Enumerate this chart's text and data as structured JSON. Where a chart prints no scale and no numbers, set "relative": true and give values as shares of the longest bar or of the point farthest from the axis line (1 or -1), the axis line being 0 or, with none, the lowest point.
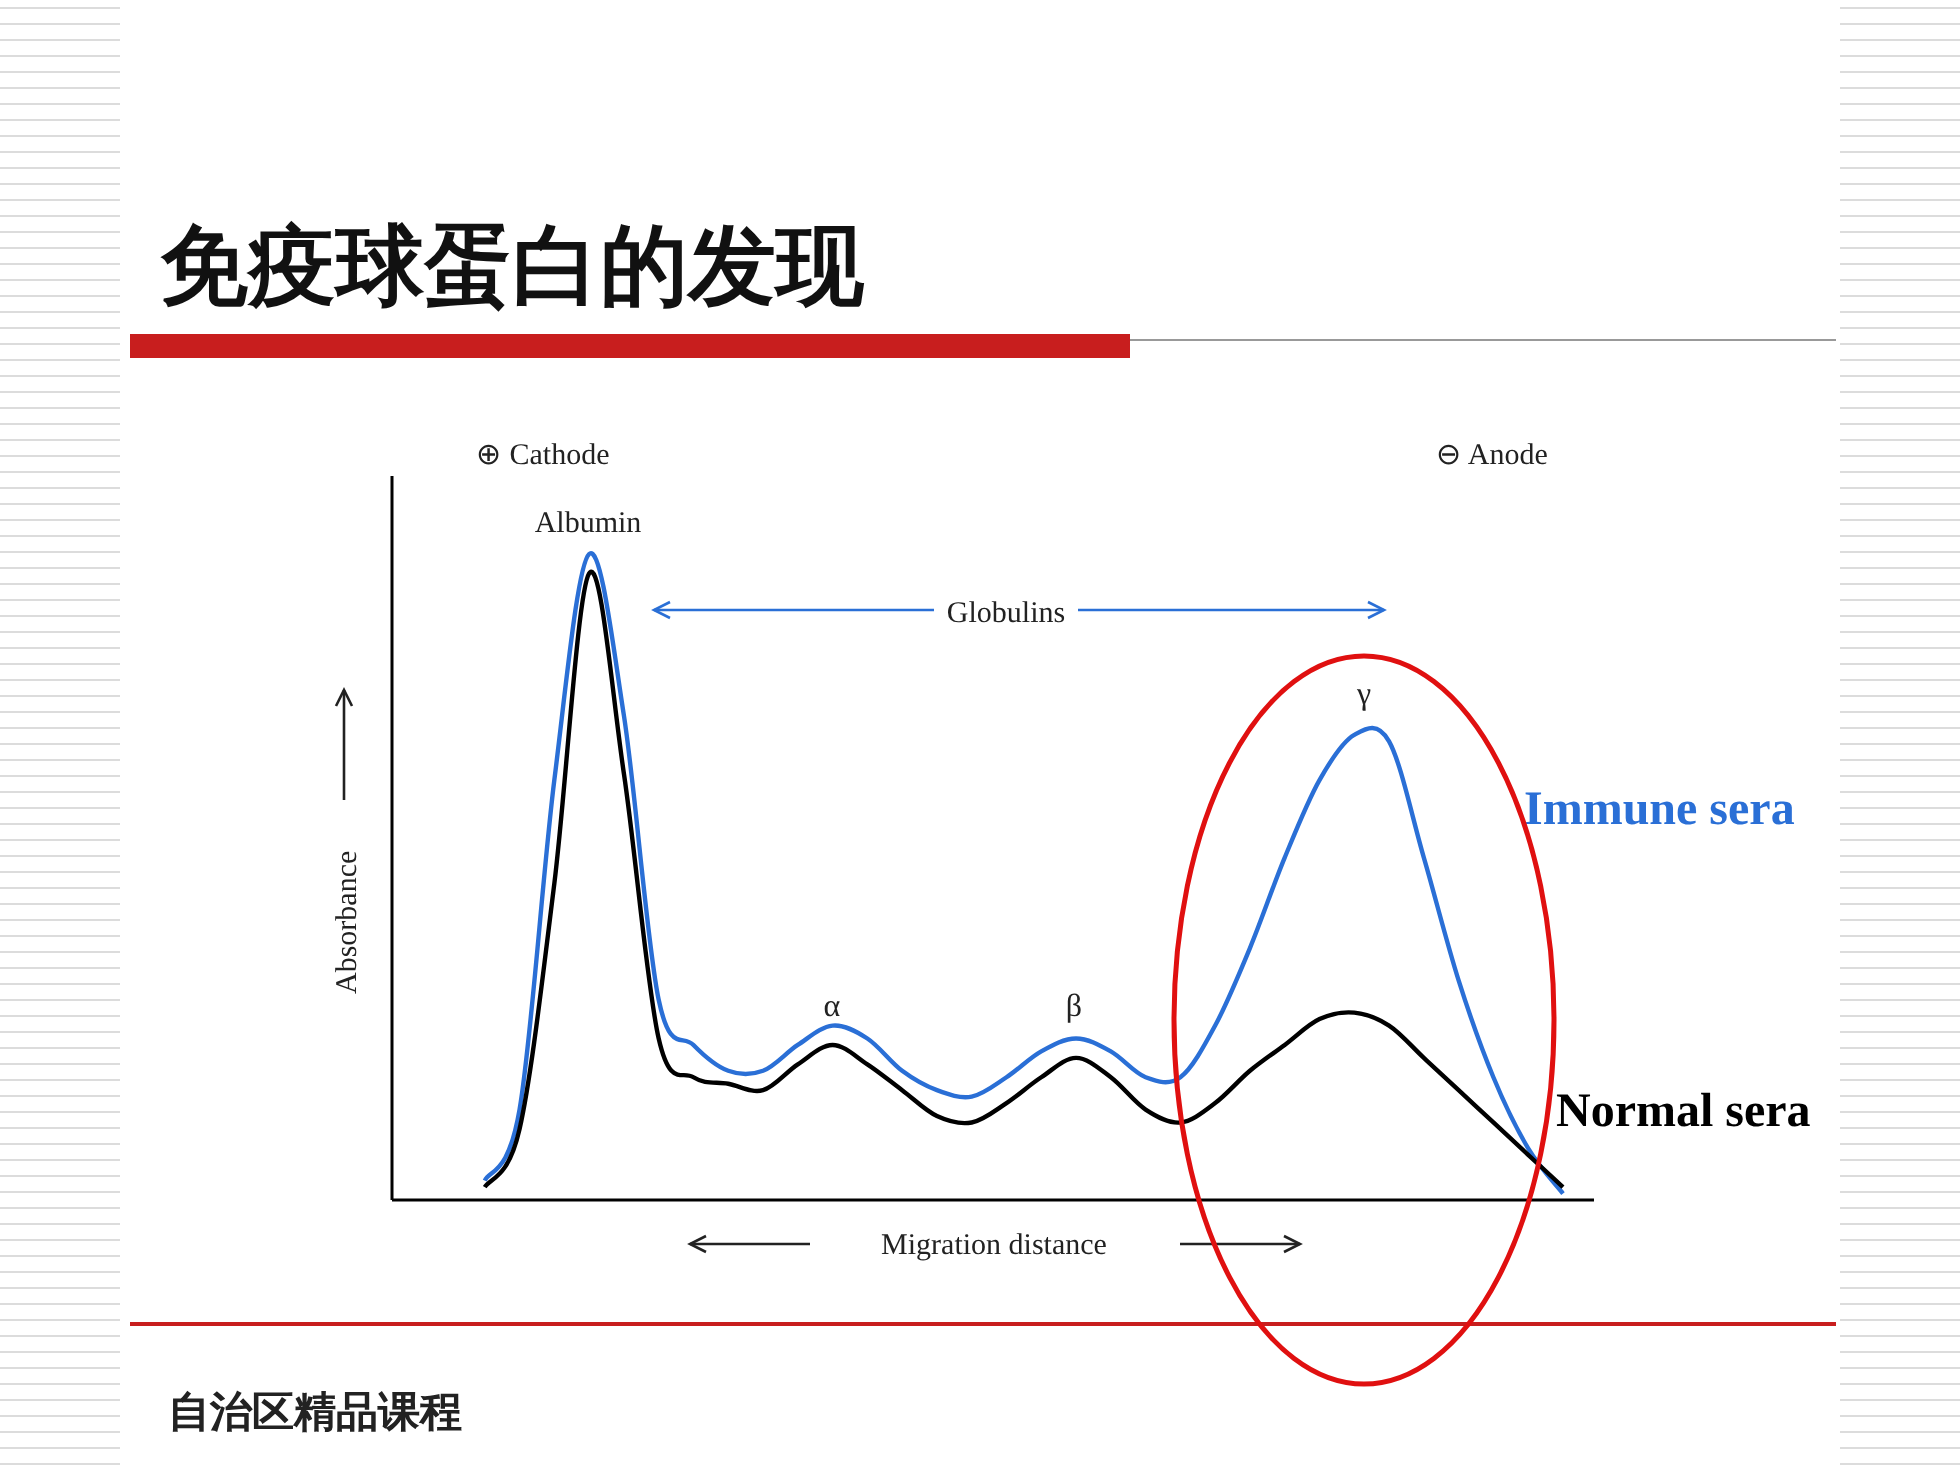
{
  "chart_data": {
    "type": "line",
    "relative": true,
    "title": "免疫球蛋白的发现",
    "xlabel": "Migration distance",
    "ylabel": "Absorbance",
    "categories": [
      null,
      null,
      null,
      null,
      null,
      null,
      null,
      null,
      null,
      null,
      null,
      null,
      null,
      null,
      null,
      null,
      null,
      null,
      null,
      null,
      null,
      null,
      null,
      null,
      null,
      null,
      null,
      null,
      null,
      null,
      null,
      null,
      null
    ],
    "series": [
      {
        "name": "Immune sera",
        "color": "#2a6fd6",
        "values": [
          null,
          0.03,
          0.14,
          0.65,
          1.0,
          0.75,
          0.31,
          0.24,
          0.2,
          0.2,
          0.24,
          0.27,
          0.25,
          0.2,
          0.17,
          0.16,
          0.19,
          0.23,
          0.25,
          0.23,
          0.19,
          0.19,
          0.27,
          0.39,
          0.53,
          0.65,
          0.72,
          0.71,
          0.53,
          0.34,
          0.19,
          0.08,
          0.01
        ]
      },
      {
        "name": "Normal sera",
        "color": "#000000",
        "values": [
          null,
          0.02,
          0.11,
          0.49,
          0.97,
          0.66,
          0.25,
          0.19,
          0.18,
          0.17,
          0.21,
          0.24,
          0.21,
          0.17,
          0.13,
          0.12,
          0.15,
          0.19,
          0.22,
          0.19,
          0.14,
          0.12,
          0.15,
          0.2,
          0.24,
          0.28,
          0.29,
          0.27,
          0.22,
          0.17,
          0.12,
          0.07,
          0.02
        ]
      }
    ],
    "annotations": [
      "⊕ Cathode",
      "⊖ Anode",
      "Albumin",
      "Globulins",
      "α",
      "β",
      "γ",
      "自治区精品课程"
    ]
  }
}
